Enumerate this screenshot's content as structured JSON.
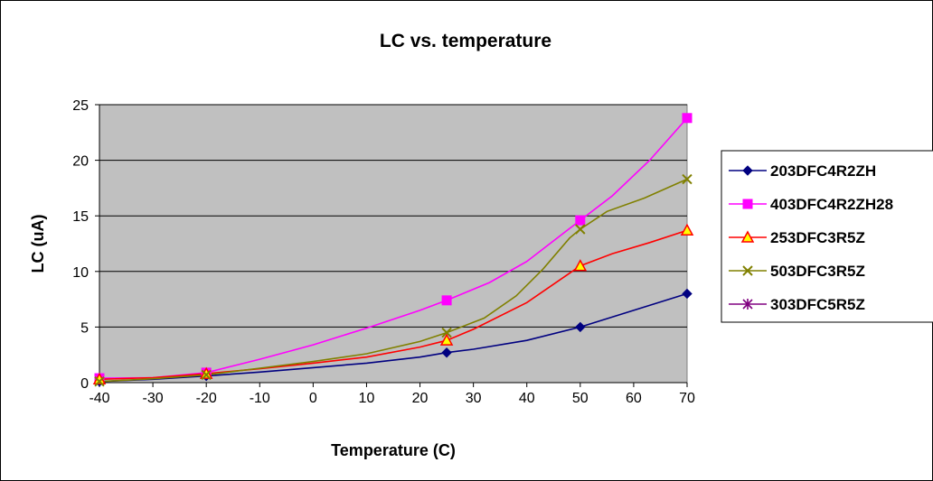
{
  "chart_data": {
    "type": "line",
    "title": "LC vs. temperature",
    "xlabel": "Temperature (C)",
    "ylabel": "LC (uA)",
    "xlim": [
      -40,
      70
    ],
    "ylim": [
      0,
      25
    ],
    "x_ticks": [
      -40,
      -30,
      -20,
      -10,
      0,
      10,
      20,
      30,
      40,
      50,
      60,
      70
    ],
    "y_ticks": [
      0,
      5,
      10,
      15,
      20,
      25
    ],
    "grid": "horizontal",
    "legend_position": "right",
    "plot_background": "#c0c0c0",
    "series": [
      {
        "name": "203DFC4R2ZH",
        "color": "#000080",
        "marker": "diamond",
        "points": [
          [
            -40,
            0.1
          ],
          [
            -20,
            0.6
          ],
          [
            25,
            2.7
          ],
          [
            50,
            5.0
          ],
          [
            70,
            8.0
          ]
        ],
        "curve": [
          [
            -40,
            0.1
          ],
          [
            -30,
            0.3
          ],
          [
            -20,
            0.6
          ],
          [
            -10,
            0.95
          ],
          [
            0,
            1.35
          ],
          [
            10,
            1.75
          ],
          [
            20,
            2.3
          ],
          [
            25,
            2.7
          ],
          [
            30,
            3.0
          ],
          [
            40,
            3.8
          ],
          [
            50,
            5.0
          ],
          [
            60,
            6.5
          ],
          [
            70,
            8.0
          ]
        ]
      },
      {
        "name": "403DFC4R2ZH28",
        "color": "#ff00ff",
        "marker": "square",
        "points": [
          [
            -40,
            0.4
          ],
          [
            -20,
            0.9
          ],
          [
            25,
            7.4
          ],
          [
            50,
            14.6
          ],
          [
            70,
            23.8
          ]
        ],
        "curve": [
          [
            -40,
            0.4
          ],
          [
            -30,
            0.45
          ],
          [
            -20,
            0.9
          ],
          [
            -10,
            2.1
          ],
          [
            0,
            3.4
          ],
          [
            10,
            4.9
          ],
          [
            20,
            6.5
          ],
          [
            25,
            7.4
          ],
          [
            33,
            9.0
          ],
          [
            40,
            10.9
          ],
          [
            50,
            14.6
          ],
          [
            56,
            16.8
          ],
          [
            63,
            20.0
          ],
          [
            70,
            23.8
          ]
        ]
      },
      {
        "name": "253DFC3R5Z",
        "color": "#ff0000",
        "marker": "triangle",
        "points": [
          [
            -40,
            0.3
          ],
          [
            -20,
            0.8
          ],
          [
            25,
            3.8
          ],
          [
            50,
            10.5
          ],
          [
            70,
            13.7
          ]
        ],
        "curve": [
          [
            -40,
            0.3
          ],
          [
            -30,
            0.45
          ],
          [
            -20,
            0.8
          ],
          [
            -10,
            1.25
          ],
          [
            0,
            1.75
          ],
          [
            10,
            2.3
          ],
          [
            20,
            3.2
          ],
          [
            25,
            3.8
          ],
          [
            30,
            4.8
          ],
          [
            40,
            7.2
          ],
          [
            50,
            10.5
          ],
          [
            56,
            11.6
          ],
          [
            63,
            12.6
          ],
          [
            70,
            13.7
          ]
        ]
      },
      {
        "name": "503DFC3R5Z",
        "color": "#808000",
        "marker": "x",
        "points": [
          [
            -40,
            0.1
          ],
          [
            -20,
            0.7
          ],
          [
            25,
            4.5
          ],
          [
            50,
            13.8
          ],
          [
            70,
            18.3
          ]
        ],
        "curve": [
          [
            -40,
            0.1
          ],
          [
            -30,
            0.35
          ],
          [
            -20,
            0.7
          ],
          [
            -10,
            1.3
          ],
          [
            0,
            1.9
          ],
          [
            10,
            2.6
          ],
          [
            20,
            3.7
          ],
          [
            25,
            4.5
          ],
          [
            32,
            5.8
          ],
          [
            38,
            7.8
          ],
          [
            43,
            10.2
          ],
          [
            48,
            13.0
          ],
          [
            50,
            13.8
          ],
          [
            55,
            15.4
          ],
          [
            62,
            16.6
          ],
          [
            70,
            18.3
          ]
        ]
      },
      {
        "name": "303DFC5R5Z",
        "color": "#800080",
        "marker": "asterisk",
        "points": [],
        "curve": []
      }
    ]
  }
}
